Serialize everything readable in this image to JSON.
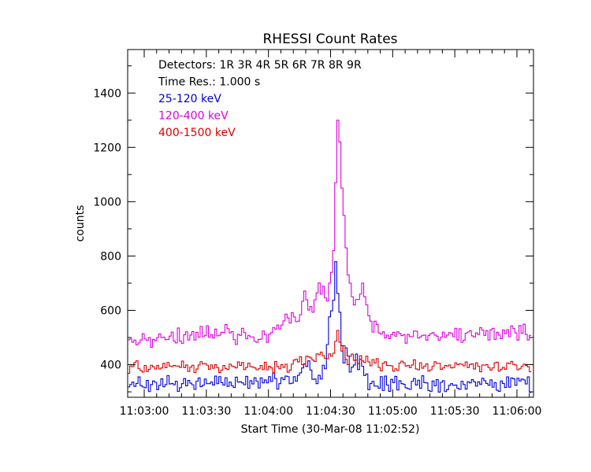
{
  "chart_data": {
    "type": "line",
    "title": "RHESSI Count Rates",
    "xlabel": "Start Time (30-Mar-08 11:02:52)",
    "ylabel": "counts",
    "x_unit": "seconds after 11:02:52",
    "xlim": [
      0,
      196
    ],
    "ylim": [
      280,
      1560
    ],
    "x_ticks": [
      {
        "value": 8,
        "label": "11:03:00"
      },
      {
        "value": 38,
        "label": "11:03:30"
      },
      {
        "value": 68,
        "label": "11:04:00"
      },
      {
        "value": 98,
        "label": "11:04:30"
      },
      {
        "value": 128,
        "label": "11:05:00"
      },
      {
        "value": 158,
        "label": "11:05:30"
      },
      {
        "value": 188,
        "label": "11:06:00"
      }
    ],
    "y_ticks": [
      400,
      600,
      800,
      1000,
      1200,
      1400
    ],
    "annotations": [
      {
        "text": "Detectors:  1R 3R 4R 5R 6R 7R 8R 9R",
        "color": "#000000"
      },
      {
        "text": "Time Res.: 1.000 s",
        "color": "#000000"
      },
      {
        "text": "25-120 keV",
        "color": "#0000dd"
      },
      {
        "text": "120-400 keV",
        "color": "#dd00dd"
      },
      {
        "text": "400-1500 keV",
        "color": "#dd0000"
      }
    ],
    "series": [
      {
        "name": "25-120 keV",
        "color": "#0000dd",
        "x_start": 0,
        "dt": 1,
        "values": [
          318,
          327,
          336,
          320,
          331,
          355,
          323,
          318,
          315,
          342,
          301,
          327,
          340,
          335,
          308,
          324,
          348,
          319,
          327,
          360,
          329,
          331,
          326,
          339,
          302,
          315,
          330,
          349,
          322,
          342,
          332,
          326,
          309,
          339,
          351,
          319,
          324,
          347,
          330,
          330,
          336,
          325,
          358,
          330,
          356,
          334,
          325,
          352,
          320,
          336,
          323,
          316,
          354,
          336,
          337,
          333,
          326,
          357,
          313,
          341,
          329,
          352,
          339,
          314,
          351,
          333,
          344,
          333,
          356,
          338,
          369,
          349,
          310,
          330,
          352,
          345,
          358,
          356,
          330,
          332,
          356,
          339,
          361,
          370,
          388,
          403,
          393,
          414,
          380,
          346,
          347,
          330,
          361,
          347,
          398,
          385,
          474,
          576,
          598,
          637,
          779,
          662,
          593,
          470,
          406,
          462,
          432,
          373,
          391,
          399,
          439,
          382,
          420,
          394,
          360,
          366,
          308,
          331,
          339,
          321,
          321,
          313,
          356,
          305,
          358,
          325,
          302,
          346,
          334,
          357,
          307,
          341,
          330,
          328,
          315,
          312,
          309,
          339,
          349,
          325,
          343,
          313,
          359,
          334,
          333,
          305,
          301,
          340,
          322,
          345,
          299,
          335,
          341,
          301,
          308,
          324,
          330,
          324,
          325,
          313,
          309,
          339,
          327,
          310,
          337,
          333,
          345,
          337,
          321,
          337,
          328,
          350,
          341,
          331,
          324,
          344,
          317,
          334,
          306,
          302,
          340,
          331,
          316,
          355,
          317,
          351,
          348,
          324,
          350,
          340,
          347,
          344,
          329,
          355,
          298
        ]
      },
      {
        "name": "120-400 keV",
        "color": "#dd00dd",
        "x_start": 0,
        "dt": 1,
        "values": [
          492,
          495,
          483,
          491,
          473,
          480,
          491,
          514,
          495,
          489,
          500,
          464,
          493,
          488,
          500,
          513,
          500,
          501,
          492,
          493,
          505,
          520,
          487,
          480,
          535,
          487,
          478,
          510,
          521,
          491,
          509,
          522,
          491,
          519,
          501,
          541,
          503,
          508,
          543,
          501,
          510,
          498,
          531,
          506,
          509,
          519,
          518,
          548,
          533,
          517,
          522,
          492,
          474,
          512,
          508,
          534,
          518,
          495,
          508,
          502,
          502,
          486,
          482,
          493,
          494,
          524,
          511,
          482,
          512,
          518,
          537,
          531,
          546,
          531,
          546,
          561,
          586,
          572,
          553,
          591,
          576,
          558,
          560,
          584,
          633,
          671,
          639,
          601,
          614,
          593,
          639,
          664,
          701,
          660,
          689,
          646,
          634,
          700,
          740,
          820,
          1070,
          1300,
          1220,
          1050,
          950,
          830,
          730,
          700,
          650,
          620,
          640,
          640,
          660,
          700,
          650,
          620,
          580,
          560,
          520,
          560,
          548,
          517,
          513,
          521,
          498,
          509,
          496,
          510,
          519,
          505,
          521,
          515,
          507,
          510,
          479,
          511,
          504,
          503,
          524,
          523,
          498,
          502,
          508,
          509,
          490,
          507,
          514,
          518,
          509,
          505,
          490,
          501,
          520,
          501,
          509,
          518,
          515,
          503,
          534,
          491,
          532,
          482,
          490,
          516,
          520,
          525,
          506,
          502,
          517,
          511,
          536,
          527,
          508,
          525,
          491,
          528,
          534,
          493,
          519,
          509,
          496,
          528,
          514,
          529,
          503,
          543,
          533,
          517,
          490,
          544,
          515,
          549,
          512,
          491,
          508
        ]
      },
      {
        "name": "400-1500 keV",
        "color": "#dd0000",
        "x_start": 0,
        "dt": 1,
        "values": [
          368,
          395,
          393,
          408,
          414,
          385,
          378,
          373,
          397,
          375,
          383,
          398,
          392,
          384,
          397,
          384,
          388,
          405,
          389,
          408,
          395,
          393,
          397,
          395,
          395,
          390,
          413,
          389,
          399,
          375,
          391,
          398,
          371,
          384,
          399,
          411,
          403,
          404,
          398,
          383,
          399,
          387,
          400,
          389,
          371,
          380,
          397,
          386,
          382,
          402,
          395,
          392,
          388,
          410,
          397,
          408,
          382,
          390,
          406,
          393,
          391,
          388,
          381,
          385,
          397,
          382,
          409,
          381,
          394,
          388,
          370,
          412,
          393,
          385,
          400,
          390,
          402,
          372,
          380,
          402,
          417,
          420,
          410,
          429,
          400,
          402,
          431,
          429,
          425,
          417,
          412,
          440,
          437,
          446,
          433,
          423,
          422,
          440,
          431,
          442,
          486,
          526,
          483,
          450,
          470,
          420,
          400,
          431,
          439,
          416,
          417,
          404,
          433,
          414,
          408,
          431,
          410,
          396,
          419,
          406,
          422,
          390,
          377,
          405,
          411,
          397,
          397,
          396,
          376,
          385,
          379,
          406,
          413,
          407,
          395,
          397,
          389,
          399,
          418,
          384,
          381,
          407,
          387,
          395,
          403,
          376,
          381,
          394,
          411,
          405,
          405,
          383,
          388,
          397,
          395,
          399,
          388,
          390,
          407,
          400,
          403,
          402,
          396,
          410,
          389,
          401,
          403,
          384,
          407,
          394,
          374,
          399,
          398,
          400,
          389,
          380,
          388,
          407,
          409,
          376,
          383,
          390,
          383,
          406,
          404,
          412,
          401,
          399,
          381,
          385,
          394,
          402,
          397,
          392,
          374
        ]
      }
    ]
  }
}
